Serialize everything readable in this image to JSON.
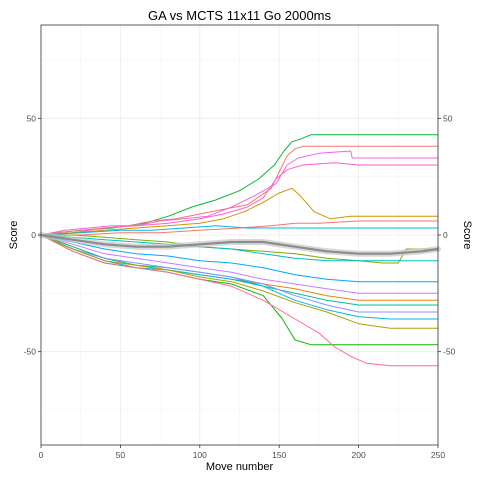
{
  "chart_data": {
    "type": "line",
    "title": "GA vs MCTS 11x11 Go 2000ms",
    "xlabel": "Move number",
    "ylabel": "Score",
    "ylabel_right": "Score",
    "xlim": [
      0,
      250
    ],
    "ylim": [
      -90,
      90
    ],
    "x_ticks": [
      0,
      50,
      100,
      150,
      200,
      250
    ],
    "y_ticks": [
      -50,
      0,
      50
    ],
    "grid": true,
    "legend": "none",
    "series": [
      {
        "color": "#00BA38",
        "points": [
          [
            0,
            0
          ],
          [
            10,
            1
          ],
          [
            25,
            2
          ],
          [
            45,
            3
          ],
          [
            65,
            5
          ],
          [
            80,
            8
          ],
          [
            95,
            12
          ],
          [
            110,
            15
          ],
          [
            125,
            19
          ],
          [
            137,
            24
          ],
          [
            147,
            30
          ],
          [
            153,
            36
          ],
          [
            158,
            40
          ],
          [
            163,
            41
          ],
          [
            170,
            43
          ],
          [
            250,
            43
          ]
        ]
      },
      {
        "color": "#F8766D",
        "points": [
          [
            0,
            0
          ],
          [
            10,
            1
          ],
          [
            25,
            2
          ],
          [
            40,
            3
          ],
          [
            55,
            4
          ],
          [
            70,
            6
          ],
          [
            85,
            7
          ],
          [
            100,
            9
          ],
          [
            115,
            11
          ],
          [
            130,
            13
          ],
          [
            145,
            20
          ],
          [
            150,
            27
          ],
          [
            155,
            34
          ],
          [
            160,
            37
          ],
          [
            165,
            38
          ],
          [
            250,
            38
          ]
        ]
      },
      {
        "color": "#F564E3",
        "points": [
          [
            0,
            0
          ],
          [
            15,
            2
          ],
          [
            30,
            3
          ],
          [
            45,
            4
          ],
          [
            60,
            4
          ],
          [
            75,
            6
          ],
          [
            90,
            7
          ],
          [
            105,
            8
          ],
          [
            120,
            12
          ],
          [
            135,
            17
          ],
          [
            148,
            22
          ],
          [
            155,
            30
          ],
          [
            162,
            33
          ],
          [
            175,
            35
          ],
          [
            195,
            36
          ],
          [
            196,
            33
          ],
          [
            250,
            33
          ]
        ]
      },
      {
        "color": "#FF61C3",
        "points": [
          [
            0,
            0
          ],
          [
            20,
            1
          ],
          [
            40,
            3
          ],
          [
            60,
            4
          ],
          [
            80,
            5
          ],
          [
            100,
            7
          ],
          [
            115,
            9
          ],
          [
            130,
            12
          ],
          [
            140,
            16
          ],
          [
            148,
            24
          ],
          [
            155,
            28
          ],
          [
            165,
            30
          ],
          [
            185,
            31
          ],
          [
            200,
            30
          ],
          [
            250,
            30
          ]
        ]
      },
      {
        "color": "#CD9600",
        "points": [
          [
            0,
            0
          ],
          [
            20,
            1
          ],
          [
            40,
            2
          ],
          [
            60,
            3
          ],
          [
            80,
            4
          ],
          [
            100,
            5
          ],
          [
            115,
            7
          ],
          [
            128,
            10
          ],
          [
            140,
            14
          ],
          [
            150,
            18
          ],
          [
            158,
            20
          ],
          [
            163,
            17
          ],
          [
            172,
            10
          ],
          [
            182,
            7
          ],
          [
            195,
            8
          ],
          [
            250,
            8
          ]
        ]
      },
      {
        "color": "#F8766D",
        "points": [
          [
            0,
            0
          ],
          [
            25,
            0
          ],
          [
            50,
            1
          ],
          [
            75,
            1
          ],
          [
            100,
            2
          ],
          [
            125,
            3
          ],
          [
            145,
            4
          ],
          [
            160,
            5
          ],
          [
            175,
            5
          ],
          [
            200,
            6
          ],
          [
            250,
            6
          ]
        ]
      },
      {
        "color": "#00B9E3",
        "points": [
          [
            0,
            0
          ],
          [
            25,
            1
          ],
          [
            50,
            2
          ],
          [
            70,
            2
          ],
          [
            90,
            3
          ],
          [
            110,
            4
          ],
          [
            130,
            3
          ],
          [
            150,
            3
          ],
          [
            170,
            3
          ],
          [
            190,
            3
          ],
          [
            210,
            3
          ],
          [
            250,
            3
          ]
        ]
      },
      {
        "color": "#7CAE00",
        "points": [
          [
            0,
            0
          ],
          [
            20,
            0
          ],
          [
            40,
            -1
          ],
          [
            60,
            -2
          ],
          [
            80,
            -3
          ],
          [
            100,
            -5
          ],
          [
            120,
            -6
          ],
          [
            140,
            -7
          ],
          [
            160,
            -8
          ],
          [
            180,
            -10
          ],
          [
            200,
            -11
          ],
          [
            215,
            -12
          ],
          [
            225,
            -12
          ],
          [
            230,
            -6
          ],
          [
            250,
            -6
          ]
        ]
      },
      {
        "color": "#00BFC4",
        "points": [
          [
            0,
            0
          ],
          [
            20,
            -1
          ],
          [
            40,
            -2
          ],
          [
            60,
            -3
          ],
          [
            80,
            -4
          ],
          [
            100,
            -5
          ],
          [
            120,
            -6
          ],
          [
            140,
            -8
          ],
          [
            160,
            -10
          ],
          [
            180,
            -11
          ],
          [
            200,
            -11
          ],
          [
            250,
            -11
          ]
        ]
      },
      {
        "color": "#00A9FF",
        "points": [
          [
            0,
            0
          ],
          [
            20,
            -3
          ],
          [
            40,
            -6
          ],
          [
            60,
            -8
          ],
          [
            80,
            -9
          ],
          [
            100,
            -11
          ],
          [
            120,
            -12
          ],
          [
            140,
            -14
          ],
          [
            160,
            -17
          ],
          [
            180,
            -19
          ],
          [
            200,
            -20
          ],
          [
            250,
            -20
          ]
        ]
      },
      {
        "color": "#C77CFF",
        "points": [
          [
            0,
            0
          ],
          [
            20,
            -4
          ],
          [
            40,
            -8
          ],
          [
            60,
            -10
          ],
          [
            80,
            -12
          ],
          [
            100,
            -14
          ],
          [
            120,
            -16
          ],
          [
            140,
            -19
          ],
          [
            160,
            -21
          ],
          [
            180,
            -23
          ],
          [
            200,
            -25
          ],
          [
            250,
            -25
          ]
        ]
      },
      {
        "color": "#E68613",
        "points": [
          [
            0,
            0
          ],
          [
            20,
            -5
          ],
          [
            40,
            -10
          ],
          [
            60,
            -13
          ],
          [
            80,
            -15
          ],
          [
            100,
            -17
          ],
          [
            120,
            -19
          ],
          [
            140,
            -21
          ],
          [
            160,
            -23
          ],
          [
            180,
            -26
          ],
          [
            200,
            -28
          ],
          [
            250,
            -28
          ]
        ]
      },
      {
        "color": "#00C19A",
        "points": [
          [
            0,
            0
          ],
          [
            20,
            -5
          ],
          [
            40,
            -10
          ],
          [
            60,
            -13
          ],
          [
            80,
            -14
          ],
          [
            100,
            -16
          ],
          [
            120,
            -18
          ],
          [
            140,
            -22
          ],
          [
            160,
            -25
          ],
          [
            180,
            -28
          ],
          [
            200,
            -30
          ],
          [
            250,
            -30
          ]
        ]
      },
      {
        "color": "#8494FF",
        "points": [
          [
            0,
            0
          ],
          [
            20,
            -6
          ],
          [
            40,
            -10
          ],
          [
            60,
            -12
          ],
          [
            80,
            -14
          ],
          [
            100,
            -16
          ],
          [
            120,
            -18
          ],
          [
            140,
            -21
          ],
          [
            160,
            -26
          ],
          [
            180,
            -30
          ],
          [
            200,
            -33
          ],
          [
            250,
            -33
          ]
        ]
      },
      {
        "color": "#00B8E7",
        "points": [
          [
            0,
            0
          ],
          [
            20,
            -6
          ],
          [
            40,
            -11
          ],
          [
            60,
            -14
          ],
          [
            80,
            -15
          ],
          [
            100,
            -17
          ],
          [
            120,
            -19
          ],
          [
            140,
            -22
          ],
          [
            160,
            -28
          ],
          [
            180,
            -32
          ],
          [
            200,
            -35
          ],
          [
            220,
            -36
          ],
          [
            250,
            -36
          ]
        ]
      },
      {
        "color": "#ABA300",
        "points": [
          [
            0,
            0
          ],
          [
            20,
            -6
          ],
          [
            40,
            -11
          ],
          [
            60,
            -13
          ],
          [
            80,
            -15
          ],
          [
            100,
            -18
          ],
          [
            120,
            -20
          ],
          [
            140,
            -24
          ],
          [
            160,
            -29
          ],
          [
            180,
            -33
          ],
          [
            200,
            -38
          ],
          [
            220,
            -40
          ],
          [
            250,
            -40
          ]
        ]
      },
      {
        "color": "#0CB702",
        "points": [
          [
            0,
            0
          ],
          [
            20,
            -7
          ],
          [
            40,
            -12
          ],
          [
            60,
            -14
          ],
          [
            80,
            -16
          ],
          [
            100,
            -19
          ],
          [
            120,
            -21
          ],
          [
            140,
            -26
          ],
          [
            152,
            -36
          ],
          [
            160,
            -45
          ],
          [
            170,
            -47
          ],
          [
            185,
            -47
          ],
          [
            200,
            -47
          ],
          [
            250,
            -47
          ]
        ]
      },
      {
        "color": "#FF6A98",
        "points": [
          [
            0,
            0
          ],
          [
            20,
            -7
          ],
          [
            40,
            -12
          ],
          [
            60,
            -14
          ],
          [
            80,
            -16
          ],
          [
            100,
            -19
          ],
          [
            120,
            -22
          ],
          [
            140,
            -28
          ],
          [
            160,
            -36
          ],
          [
            175,
            -42
          ],
          [
            185,
            -48
          ],
          [
            195,
            -52
          ],
          [
            205,
            -55
          ],
          [
            220,
            -56
          ],
          [
            250,
            -56
          ]
        ]
      }
    ],
    "smooth_series": {
      "color": "#8c8c8c",
      "points": [
        [
          0,
          0
        ],
        [
          20,
          -2
        ],
        [
          40,
          -4
        ],
        [
          60,
          -5
        ],
        [
          80,
          -5
        ],
        [
          100,
          -4
        ],
        [
          120,
          -3
        ],
        [
          140,
          -3
        ],
        [
          160,
          -5
        ],
        [
          180,
          -7
        ],
        [
          200,
          -8
        ],
        [
          220,
          -8
        ],
        [
          240,
          -7
        ],
        [
          250,
          -6
        ]
      ]
    }
  }
}
